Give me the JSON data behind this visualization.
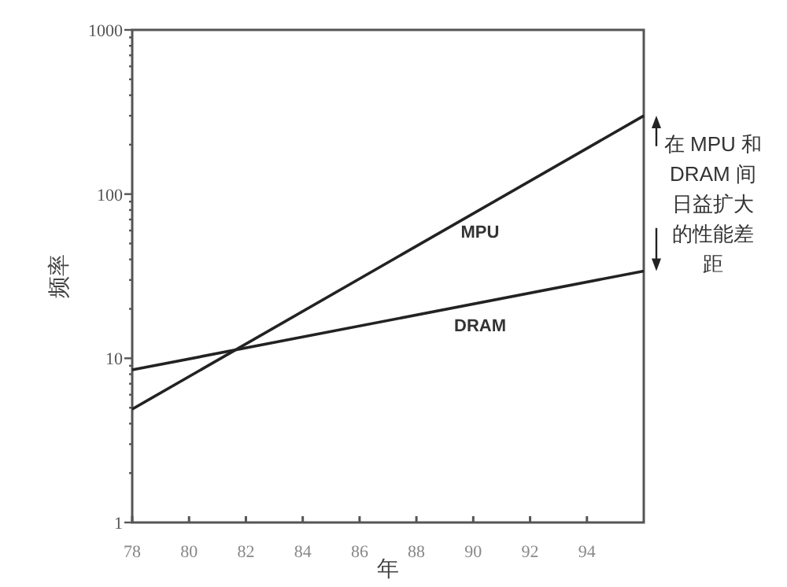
{
  "chart_data": {
    "type": "line",
    "xlabel": "年",
    "ylabel": "频率",
    "log": "y",
    "x": [
      78,
      96
    ],
    "series": [
      {
        "name": "MPU",
        "color": "#222222",
        "values": [
          4.9,
          300
        ]
      },
      {
        "name": "DRAM",
        "color": "#222222",
        "values": [
          8.5,
          34
        ]
      }
    ],
    "xlim": [
      78,
      96
    ],
    "xticks": [
      78,
      80,
      82,
      84,
      86,
      88,
      90,
      92,
      94
    ],
    "ylim": [
      1,
      1000
    ],
    "yticks": [
      1,
      {
        "value": 2,
        "label": null
      },
      {
        "value": 3,
        "label": null
      },
      {
        "value": 4,
        "label": null
      },
      {
        "value": 5,
        "label": null
      },
      {
        "value": 6,
        "label": null
      },
      {
        "value": 7,
        "label": null
      },
      {
        "value": 8,
        "label": null
      },
      {
        "value": 9,
        "label": null
      },
      10,
      {
        "value": 20,
        "label": null
      },
      {
        "value": 30,
        "label": null
      },
      {
        "value": 40,
        "label": null
      },
      {
        "value": 50,
        "label": null
      },
      {
        "value": 60,
        "label": null
      },
      {
        "value": 70,
        "label": null
      },
      {
        "value": 80,
        "label": null
      },
      {
        "value": 90,
        "label": null
      },
      100,
      {
        "value": 200,
        "label": null
      },
      {
        "value": 300,
        "label": null
      },
      {
        "value": 400,
        "label": null
      },
      {
        "value": 500,
        "label": null
      },
      {
        "value": 600,
        "label": null
      },
      {
        "value": 700,
        "label": null
      },
      {
        "value": 800,
        "label": null
      },
      {
        "value": 900,
        "label": null
      },
      1000
    ],
    "grid": false,
    "marker": "none",
    "line_style": "solid",
    "annotations": [
      "在 MPU 和DRAM 间日益扩大的性能差距"
    ]
  }
}
